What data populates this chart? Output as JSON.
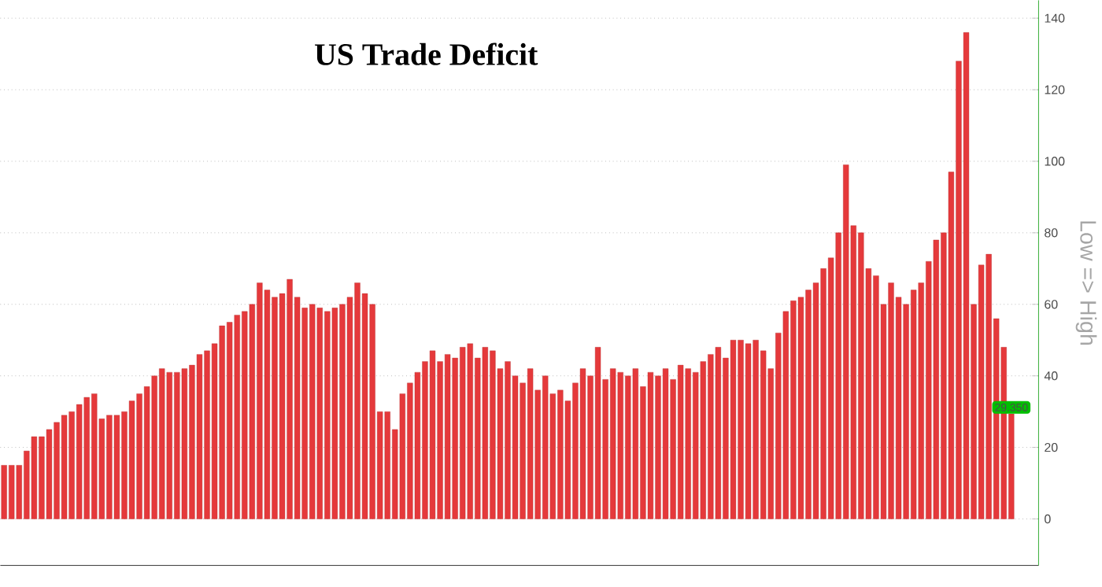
{
  "chart_data": {
    "type": "bar",
    "title": "US Trade Deficit",
    "ylabel": "Low => High",
    "color": "#e5393b",
    "categories": [
      null,
      null,
      null,
      null,
      null,
      null,
      null,
      null,
      null,
      null,
      null,
      null,
      null,
      null,
      null,
      null,
      null,
      null,
      null,
      null,
      null,
      null,
      null,
      null,
      null,
      null,
      null,
      null,
      null,
      null,
      null,
      null,
      null,
      null,
      null,
      null,
      null,
      null,
      null,
      null,
      null,
      null,
      null,
      null,
      null,
      null,
      null,
      null,
      null,
      null,
      null,
      null,
      null,
      null,
      null,
      null,
      null,
      null,
      null,
      null,
      null,
      null,
      null,
      null,
      null,
      null,
      null,
      null,
      null,
      null,
      null,
      null,
      null,
      null,
      null,
      null,
      null,
      null,
      null,
      null,
      null,
      null,
      null,
      null,
      null,
      null,
      null,
      null,
      null,
      null,
      null,
      null,
      null,
      null,
      null,
      null,
      null,
      null,
      null,
      null,
      null,
      null,
      null,
      null,
      null,
      null,
      null,
      null,
      null,
      null,
      null,
      null,
      null,
      null,
      null,
      null,
      null,
      null,
      null,
      null,
      null,
      null,
      null,
      null,
      null,
      null,
      null,
      null,
      null,
      null,
      null,
      null,
      null,
      null,
      null
    ],
    "values": [
      15,
      15,
      15,
      19,
      23,
      23,
      25,
      27,
      29,
      30,
      32,
      34,
      35,
      28,
      29,
      29,
      30,
      33,
      35,
      37,
      40,
      42,
      41,
      41,
      42,
      43,
      46,
      47,
      49,
      54,
      55,
      57,
      58,
      60,
      66,
      64,
      62,
      63,
      67,
      62,
      59,
      60,
      59,
      58,
      59,
      60,
      62,
      66,
      63,
      60,
      30,
      30,
      25,
      35,
      38,
      41,
      44,
      47,
      44,
      46,
      45,
      48,
      49,
      45,
      48,
      47,
      42,
      44,
      40,
      38,
      42,
      36,
      40,
      35,
      36,
      33,
      38,
      42,
      40,
      48,
      39,
      42,
      41,
      40,
      42,
      37,
      41,
      40,
      42,
      39,
      43,
      42,
      41,
      44,
      46,
      48,
      45,
      50,
      50,
      49,
      50,
      47,
      42,
      52,
      58,
      61,
      62,
      64,
      66,
      70,
      73,
      80,
      99,
      82,
      80,
      70,
      68,
      60,
      66,
      62,
      60,
      64,
      66,
      72,
      78,
      80,
      97,
      128,
      136,
      60,
      71,
      74,
      56,
      48,
      29.35
    ],
    "value_labels": [
      null,
      null,
      null,
      null,
      null,
      null,
      null,
      null,
      null,
      null,
      null,
      null,
      null,
      null,
      null,
      null,
      null,
      null,
      null,
      null,
      null,
      null,
      null,
      null,
      null,
      null,
      null,
      null,
      null,
      null,
      null,
      null,
      null,
      null,
      null,
      null,
      null,
      null,
      null,
      null,
      null,
      null,
      null,
      null,
      null,
      null,
      null,
      null,
      null,
      null,
      null,
      null,
      null,
      null,
      null,
      null,
      null,
      null,
      null,
      null,
      null,
      null,
      null,
      null,
      null,
      null,
      null,
      null,
      null,
      null,
      null,
      null,
      null,
      null,
      null,
      null,
      null,
      null,
      null,
      null,
      null,
      null,
      null,
      null,
      null,
      null,
      null,
      null,
      null,
      null,
      null,
      null,
      null,
      null,
      null,
      null,
      null,
      null,
      null,
      null,
      null,
      null,
      null,
      null,
      null,
      null,
      null,
      null,
      null,
      null,
      null,
      null,
      null,
      null,
      null,
      null,
      null,
      null,
      null,
      null,
      null,
      null,
      null,
      null,
      null,
      null,
      null,
      null,
      null,
      null,
      null,
      null,
      null,
      null,
      "29.350"
    ],
    "ylim": [
      -13,
      145
    ],
    "yticks": [
      0,
      20,
      40,
      60,
      80,
      100,
      120,
      140
    ],
    "grid": "y"
  }
}
